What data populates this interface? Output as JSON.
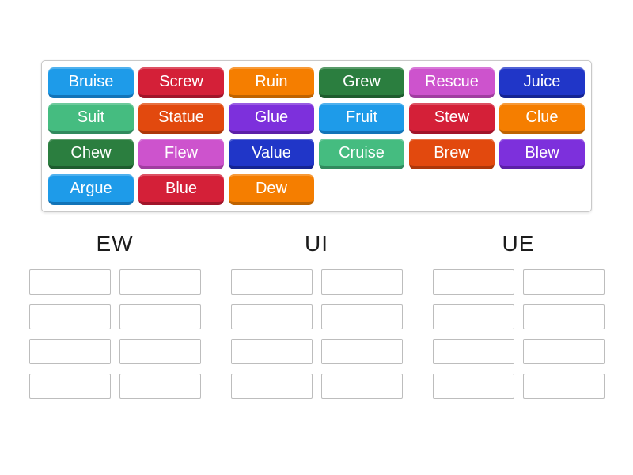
{
  "palette": {
    "blue": {
      "base": "#1e9be9",
      "dark": "#1274b8"
    },
    "red": {
      "base": "#d42038",
      "dark": "#a1152a"
    },
    "orange": {
      "base": "#f57e00",
      "dark": "#bf6300"
    },
    "dark_green": {
      "base": "#2b7e3f",
      "dark": "#1e5c2e"
    },
    "orchid": {
      "base": "#cd53cd",
      "dark": "#a03da0"
    },
    "dark_blue": {
      "base": "#2036c8",
      "dark": "#152493"
    },
    "sea_green": {
      "base": "#45bc80",
      "dark": "#318a5e"
    },
    "orange_red": {
      "base": "#e2490e",
      "dark": "#ad370a"
    },
    "purple": {
      "base": "#7d30dc",
      "dark": "#5c20a8"
    }
  },
  "tray": {
    "tiles": [
      {
        "label": "Bruise",
        "color": "blue"
      },
      {
        "label": "Screw",
        "color": "red"
      },
      {
        "label": "Ruin",
        "color": "orange"
      },
      {
        "label": "Grew",
        "color": "dark_green"
      },
      {
        "label": "Rescue",
        "color": "orchid"
      },
      {
        "label": "Juice",
        "color": "dark_blue"
      },
      {
        "label": "Suit",
        "color": "sea_green"
      },
      {
        "label": "Statue",
        "color": "orange_red"
      },
      {
        "label": "Glue",
        "color": "purple"
      },
      {
        "label": "Fruit",
        "color": "blue"
      },
      {
        "label": "Stew",
        "color": "red"
      },
      {
        "label": "Clue",
        "color": "orange"
      },
      {
        "label": "Chew",
        "color": "dark_green"
      },
      {
        "label": "Flew",
        "color": "orchid"
      },
      {
        "label": "Value",
        "color": "dark_blue"
      },
      {
        "label": "Cruise",
        "color": "sea_green"
      },
      {
        "label": "Brew",
        "color": "orange_red"
      },
      {
        "label": "Blew",
        "color": "purple"
      },
      {
        "label": "Argue",
        "color": "blue"
      },
      {
        "label": "Blue",
        "color": "red"
      },
      {
        "label": "Dew",
        "color": "orange"
      }
    ]
  },
  "groups": [
    {
      "label": "EW",
      "slot_count": 8
    },
    {
      "label": "UI",
      "slot_count": 8
    },
    {
      "label": "UE",
      "slot_count": 8
    }
  ]
}
